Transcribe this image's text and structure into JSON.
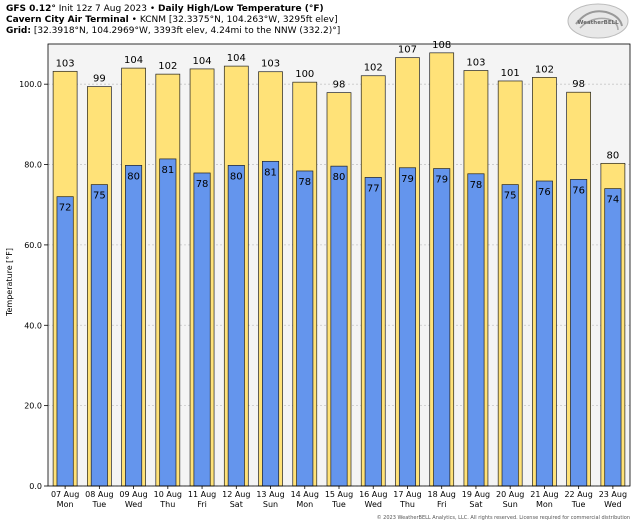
{
  "header": {
    "model": "GFS 0.12°",
    "init": "Init 12z 7 Aug 2023",
    "sep": "•",
    "title": "Daily High/Low Temperature (°F)",
    "station_name": "Cavern City Air Terminal",
    "station_detail": "KCNM [32.3375°N, 104.263°W, 3295ft elev]",
    "grid_label": "Grid:",
    "grid_detail": "[32.3918°N, 104.2969°W, 3393ft elev, 4.24mi to the NNW (332.2)°]"
  },
  "logo": {
    "text": "WeatherBELL",
    "icon": "weatherbell-swirl-logo"
  },
  "copyright": "© 2023 WeatherBELL Analytics, LLC. All rights reserved. License required for commercial distribution",
  "colors": {
    "high": "#ffe278",
    "low": "#6495ed",
    "plot_bg": "#f4f4f4",
    "bar_edge": "#222222"
  },
  "chart_data": {
    "type": "bar",
    "ylabel": "Temperature [°F]",
    "ylim": [
      0,
      110
    ],
    "yticks": [
      "0.0",
      "20.0",
      "40.0",
      "60.0",
      "80.0",
      "100.0"
    ],
    "categories": [
      "07 Aug",
      "08 Aug",
      "09 Aug",
      "10 Aug",
      "11 Aug",
      "12 Aug",
      "13 Aug",
      "14 Aug",
      "15 Aug",
      "16 Aug",
      "17 Aug",
      "18 Aug",
      "19 Aug",
      "20 Aug",
      "21 Aug",
      "22 Aug",
      "23 Aug"
    ],
    "weekdays": [
      "Mon",
      "Tue",
      "Wed",
      "Thu",
      "Fri",
      "Sat",
      "Sun",
      "Mon",
      "Tue",
      "Wed",
      "Thu",
      "Fri",
      "Sat",
      "Sun",
      "Mon",
      "Tue",
      "Wed"
    ],
    "series": [
      {
        "values": [
          103.2,
          99.4,
          104.0,
          102.5,
          103.8,
          104.5,
          103.1,
          100.5,
          97.9,
          102.1,
          106.6,
          107.8,
          103.4,
          100.8,
          101.7,
          98.0,
          80.3
        ],
        "labels": [
          "103",
          "99",
          "104",
          "102",
          "104",
          "104",
          "103",
          "100",
          "98",
          "102",
          "107",
          "108",
          "103",
          "101",
          "102",
          "98",
          "80"
        ]
      },
      {
        "values": [
          72.0,
          75.0,
          79.8,
          81.4,
          77.9,
          79.8,
          80.8,
          78.4,
          79.6,
          76.8,
          79.2,
          79.0,
          77.7,
          75.0,
          75.9,
          76.3,
          74.0
        ],
        "labels": [
          "72",
          "75",
          "80",
          "81",
          "78",
          "80",
          "81",
          "78",
          "80",
          "77",
          "79",
          "79",
          "78",
          "75",
          "76",
          "76",
          "74"
        ]
      }
    ]
  }
}
